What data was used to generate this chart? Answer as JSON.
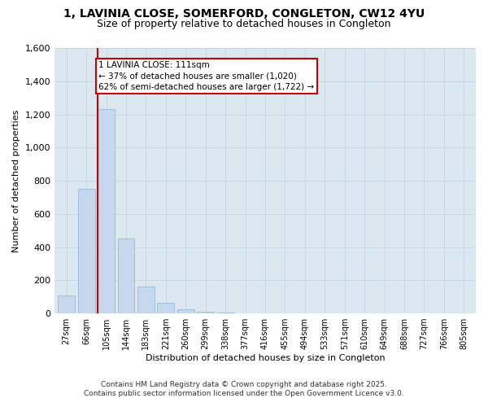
{
  "title_line1": "1, LAVINIA CLOSE, SOMERFORD, CONGLETON, CW12 4YU",
  "title_line2": "Size of property relative to detached houses in Congleton",
  "xlabel": "Distribution of detached houses by size in Congleton",
  "ylabel": "Number of detached properties",
  "categories": [
    "27sqm",
    "66sqm",
    "105sqm",
    "144sqm",
    "183sqm",
    "221sqm",
    "260sqm",
    "299sqm",
    "338sqm",
    "377sqm",
    "416sqm",
    "455sqm",
    "494sqm",
    "533sqm",
    "571sqm",
    "610sqm",
    "649sqm",
    "688sqm",
    "727sqm",
    "766sqm",
    "805sqm"
  ],
  "values": [
    110,
    750,
    1230,
    450,
    160,
    65,
    25,
    10,
    5,
    2,
    1,
    0,
    0,
    0,
    0,
    0,
    0,
    0,
    0,
    0,
    0
  ],
  "bar_color": "#c5d8ed",
  "bar_edge_color": "#8ab4d4",
  "red_line_index": 2,
  "annotation_text": "1 LAVINIA CLOSE: 111sqm\n← 37% of detached houses are smaller (1,020)\n62% of semi-detached houses are larger (1,722) →",
  "annotation_box_facecolor": "#ffffff",
  "annotation_box_edgecolor": "#cc0000",
  "ylim_min": 0,
  "ylim_max": 1600,
  "yticks": [
    0,
    200,
    400,
    600,
    800,
    1000,
    1200,
    1400,
    1600
  ],
  "grid_color": "#c8d8e8",
  "plot_bg_color": "#dce8f0",
  "footer_line1": "Contains HM Land Registry data © Crown copyright and database right 2025.",
  "footer_line2": "Contains public sector information licensed under the Open Government Licence v3.0.",
  "title1_fontsize": 10,
  "title2_fontsize": 9,
  "xlabel_fontsize": 8,
  "ylabel_fontsize": 8,
  "xtick_fontsize": 7,
  "ytick_fontsize": 8,
  "annot_fontsize": 7.5,
  "footer_fontsize": 6.5
}
